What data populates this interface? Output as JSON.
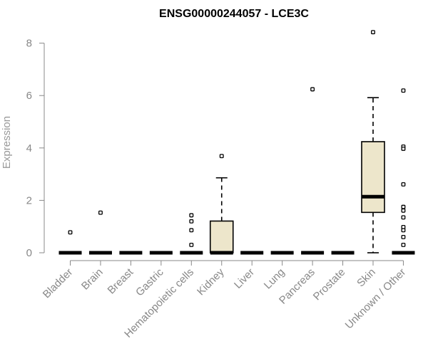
{
  "chart_data": {
    "type": "box",
    "title": "ENSG00000244057 - LCE3C",
    "xlabel": "",
    "ylabel": "Expression",
    "ylim": [
      0,
      8.5
    ],
    "yticks": [
      "0",
      "2",
      "4",
      "6",
      "8"
    ],
    "grid": false,
    "box_fill": "#ede6cb",
    "categories": [
      "Bladder",
      "Brain",
      "Breast",
      "Gastric",
      "Hematopoietic cells",
      "Kidney",
      "Liver",
      "Lung",
      "Pancreas",
      "Prostate",
      "Skin",
      "Unknown / Other"
    ],
    "boxes": [
      {
        "category": "Bladder",
        "min": 0,
        "q1": 0,
        "median": 0,
        "q3": 0,
        "max": 0,
        "outliers": [
          0.78
        ]
      },
      {
        "category": "Brain",
        "min": 0,
        "q1": 0,
        "median": 0,
        "q3": 0,
        "max": 0,
        "outliers": [
          1.53
        ]
      },
      {
        "category": "Breast",
        "min": 0,
        "q1": 0,
        "median": 0,
        "q3": 0,
        "max": 0,
        "outliers": []
      },
      {
        "category": "Gastric",
        "min": 0,
        "q1": 0,
        "median": 0,
        "q3": 0,
        "max": 0,
        "outliers": []
      },
      {
        "category": "Hematopoietic cells",
        "min": 0,
        "q1": 0,
        "median": 0,
        "q3": 0,
        "max": 0,
        "outliers": [
          1.43,
          1.2,
          0.86,
          0.3
        ]
      },
      {
        "category": "Kidney",
        "min": 0,
        "q1": 0,
        "median": 0,
        "q3": 1.21,
        "max": 2.86,
        "outliers": [
          3.69
        ]
      },
      {
        "category": "Liver",
        "min": 0,
        "q1": 0,
        "median": 0,
        "q3": 0,
        "max": 0,
        "outliers": []
      },
      {
        "category": "Lung",
        "min": 0,
        "q1": 0,
        "median": 0,
        "q3": 0,
        "max": 0,
        "outliers": []
      },
      {
        "category": "Pancreas",
        "min": 0,
        "q1": 0,
        "median": 0,
        "q3": 0,
        "max": 0,
        "outliers": [
          6.24
        ]
      },
      {
        "category": "Prostate",
        "min": 0,
        "q1": 0,
        "median": 0,
        "q3": 0,
        "max": 0,
        "outliers": []
      },
      {
        "category": "Skin",
        "min": 0,
        "q1": 1.54,
        "median": 2.14,
        "q3": 4.24,
        "max": 5.92,
        "outliers": [
          8.42
        ]
      },
      {
        "category": "Unknown / Other",
        "min": 0,
        "q1": 0,
        "median": 0,
        "q3": 0,
        "max": 0,
        "outliers": [
          6.19,
          4.05,
          3.97,
          2.61,
          1.75,
          1.61,
          1.35,
          0.98,
          0.86,
          0.6,
          0.3
        ]
      }
    ]
  }
}
